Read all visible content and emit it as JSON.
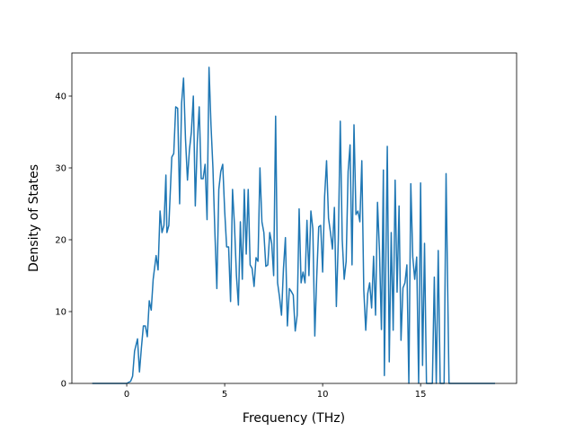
{
  "chart_data": {
    "type": "line",
    "xlabel": "Frequency (THz)",
    "ylabel": "Density of States",
    "x": [
      -1.76,
      0,
      0.2,
      0.3,
      0.4,
      0.55,
      0.65,
      0.75,
      0.85,
      0.95,
      1.05,
      1.15,
      1.25,
      1.35,
      1.5,
      1.6,
      1.7,
      1.8,
      1.9,
      2.0,
      2.05,
      2.15,
      2.3,
      2.4,
      2.5,
      2.6,
      2.7,
      2.8,
      2.9,
      3.0,
      3.1,
      3.2,
      3.3,
      3.4,
      3.5,
      3.6,
      3.7,
      3.8,
      3.9,
      4.0,
      4.1,
      4.2,
      4.3,
      4.4,
      4.5,
      4.6,
      4.7,
      4.8,
      4.9,
      5.0,
      5.1,
      5.2,
      5.3,
      5.4,
      5.5,
      5.6,
      5.7,
      5.8,
      5.9,
      6.0,
      6.1,
      6.2,
      6.3,
      6.4,
      6.5,
      6.6,
      6.7,
      6.8,
      6.9,
      7.0,
      7.1,
      7.2,
      7.3,
      7.4,
      7.5,
      7.6,
      7.7,
      7.8,
      7.9,
      8.0,
      8.1,
      8.2,
      8.3,
      8.4,
      8.5,
      8.6,
      8.7,
      8.8,
      8.9,
      9.0,
      9.1,
      9.2,
      9.3,
      9.4,
      9.5,
      9.6,
      9.7,
      9.8,
      9.9,
      10.0,
      10.1,
      10.2,
      10.3,
      10.4,
      10.5,
      10.6,
      10.7,
      10.8,
      10.9,
      11.0,
      11.1,
      11.2,
      11.3,
      11.4,
      11.5,
      11.6,
      11.7,
      11.8,
      11.9,
      12.0,
      12.1,
      12.2,
      12.3,
      12.4,
      12.5,
      12.6,
      12.7,
      12.8,
      12.9,
      13.0,
      13.1,
      13.15,
      13.3,
      13.4,
      13.5,
      13.6,
      13.7,
      13.8,
      13.9,
      14.0,
      14.1,
      14.2,
      14.3,
      14.4,
      14.5,
      14.6,
      14.7,
      14.8,
      14.9,
      15.0,
      15.1,
      15.2,
      15.3,
      15.5,
      15.6,
      15.7,
      15.8,
      15.9,
      16.0,
      16.2,
      16.3,
      16.45,
      18.8
    ],
    "series": [
      {
        "name": "DOS",
        "color": "#1f77b4",
        "values": [
          0,
          0,
          0.3,
          1,
          4.5,
          6.2,
          1.6,
          5,
          8,
          8,
          6.5,
          11.5,
          10.2,
          14.5,
          17.8,
          15.8,
          24,
          21,
          22,
          29,
          21,
          22,
          31.5,
          32,
          38.5,
          38.3,
          25,
          39,
          42.5,
          34,
          28.3,
          32.5,
          35,
          40,
          24.7,
          33.5,
          38.5,
          28.5,
          28.5,
          30.5,
          22.8,
          44,
          36,
          30,
          21,
          13.2,
          27,
          29.5,
          30.5,
          24,
          19,
          19,
          11.4,
          27,
          22,
          15,
          10.9,
          22.5,
          14.5,
          27,
          18,
          27,
          16.5,
          16,
          13.5,
          17.5,
          17,
          30,
          22.5,
          21,
          16.3,
          16.5,
          21,
          19.5,
          15,
          37.2,
          14,
          12,
          9.5,
          16,
          20.3,
          8,
          13.2,
          12.8,
          12.3,
          7.3,
          9.5,
          24.3,
          14,
          15.5,
          14,
          22.7,
          15,
          24,
          21.5,
          6.6,
          15,
          21.8,
          22,
          15.5,
          26,
          31,
          23,
          21,
          18.7,
          24.5,
          10.7,
          20,
          36.5,
          20,
          14.5,
          17,
          29.5,
          33.2,
          16.5,
          36,
          23.5,
          24,
          22.5,
          31,
          13,
          7.4,
          12.5,
          14,
          10.5,
          17.7,
          9.5,
          25.2,
          18.5,
          7.5,
          29.7,
          1.1,
          33,
          3,
          21,
          7.4,
          28.3,
          12.7,
          24.7,
          6,
          13.3,
          14,
          16.5,
          0,
          27.8,
          17.6,
          14.5,
          17.6,
          0,
          27.9,
          2.5,
          19.5,
          0,
          0,
          0,
          14.8,
          0,
          18.5,
          0,
          0,
          29.2,
          0,
          0
        ]
      }
    ],
    "xlim": [
      -2.8,
      19.9
    ],
    "ylim": [
      0,
      46
    ],
    "xticks": [
      0,
      5,
      10,
      15
    ],
    "yticks": [
      0,
      10,
      20,
      30,
      40
    ]
  }
}
